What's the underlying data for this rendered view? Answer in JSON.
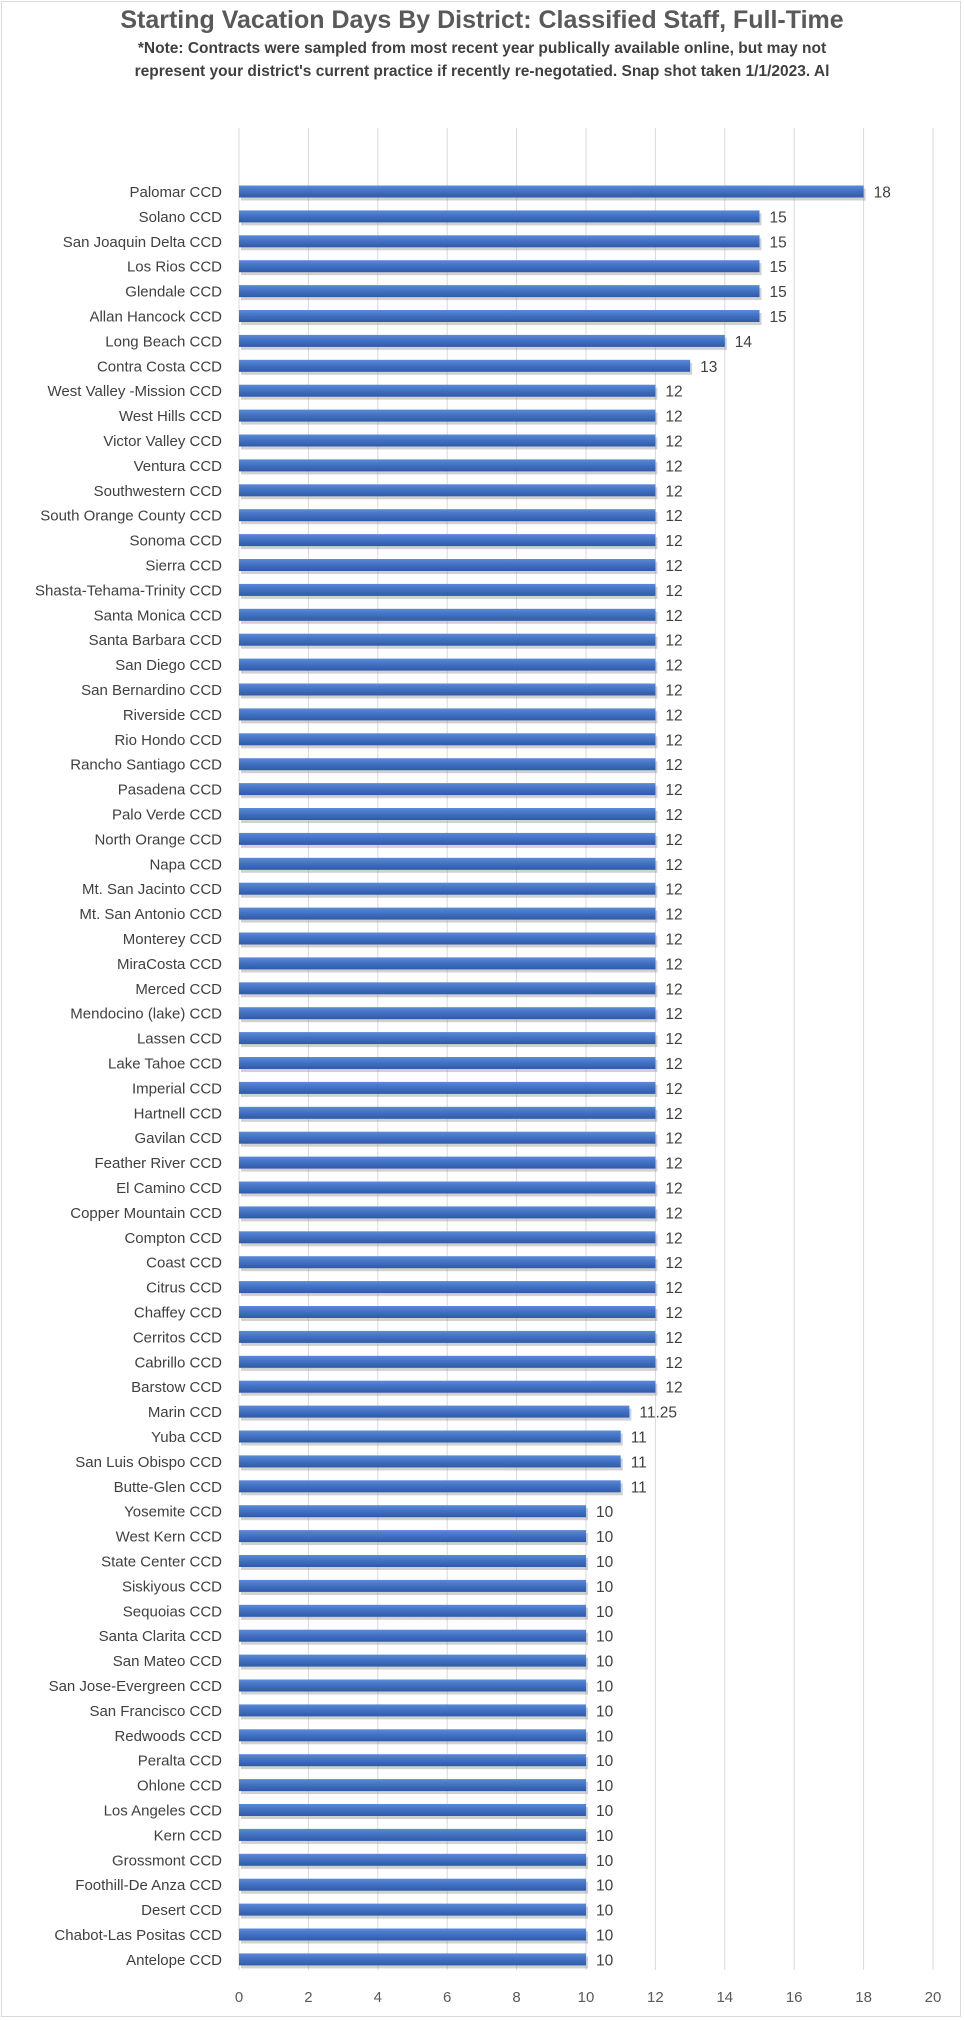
{
  "chart_data": {
    "type": "bar",
    "orientation": "horizontal",
    "title": "Starting Vacation Days By District: Classified Staff, Full-Time",
    "subtitle_lines": [
      "*Note: Contracts were sampled from most recent year publically available online, but may not",
      "represent your district's current practice if recently re-negotatied. Snap shot taken 1/1/2023. Al"
    ],
    "xlabel": "",
    "ylabel": "",
    "xlim": [
      0,
      20
    ],
    "x_ticks": [
      "0",
      "2",
      "4",
      "6",
      "8",
      "10",
      "12",
      "14",
      "16",
      "18",
      "20"
    ],
    "grid": "vertical",
    "legend": "none",
    "bar_color": "#4472c4",
    "categories": [
      "Palomar CCD",
      "Solano CCD",
      "San Joaquin Delta CCD",
      "Los Rios CCD",
      "Glendale CCD",
      "Allan Hancock CCD",
      "Long Beach CCD",
      "Contra Costa CCD",
      "West Valley -Mission CCD",
      "West Hills CCD",
      "Victor Valley CCD",
      "Ventura CCD",
      "Southwestern CCD",
      "South Orange County CCD",
      "Sonoma CCD",
      "Sierra CCD",
      "Shasta-Tehama-Trinity CCD",
      "Santa Monica CCD",
      "Santa Barbara CCD",
      "San Diego CCD",
      "San Bernardino CCD",
      "Riverside CCD",
      "Rio Hondo CCD",
      "Rancho Santiago CCD",
      "Pasadena CCD",
      "Palo Verde CCD",
      "North Orange CCD",
      "Napa CCD",
      "Mt. San Jacinto CCD",
      "Mt. San Antonio CCD",
      "Monterey CCD",
      "MiraCosta CCD",
      "Merced CCD",
      "Mendocino (lake) CCD",
      "Lassen CCD",
      "Lake Tahoe CCD",
      "Imperial CCD",
      "Hartnell CCD",
      "Gavilan CCD",
      "Feather River CCD",
      "El Camino CCD",
      "Copper Mountain CCD",
      "Compton CCD",
      "Coast CCD",
      "Citrus CCD",
      "Chaffey CCD",
      "Cerritos CCD",
      "Cabrillo CCD",
      "Barstow CCD",
      "Marin CCD",
      "Yuba CCD",
      "San Luis Obispo CCD",
      "Butte-Glen CCD",
      "Yosemite CCD",
      "West Kern CCD",
      "State Center CCD",
      "Siskiyous CCD",
      "Sequoias CCD",
      "Santa Clarita CCD",
      "San Mateo CCD",
      "San Jose-Evergreen CCD",
      "San Francisco CCD",
      "Redwoods CCD",
      "Peralta CCD",
      "Ohlone CCD",
      "Los Angeles CCD",
      "Kern CCD",
      "Grossmont CCD",
      "Foothill-De Anza CCD",
      "Desert CCD",
      "Chabot-Las Positas CCD",
      "Antelope CCD"
    ],
    "values": [
      18,
      15,
      15,
      15,
      15,
      15,
      14,
      13,
      12,
      12,
      12,
      12,
      12,
      12,
      12,
      12,
      12,
      12,
      12,
      12,
      12,
      12,
      12,
      12,
      12,
      12,
      12,
      12,
      12,
      12,
      12,
      12,
      12,
      12,
      12,
      12,
      12,
      12,
      12,
      12,
      12,
      12,
      12,
      12,
      12,
      12,
      12,
      12,
      12,
      11.25,
      11,
      11,
      11,
      10,
      10,
      10,
      10,
      10,
      10,
      10,
      10,
      10,
      10,
      10,
      10,
      10,
      10,
      10,
      10,
      10,
      10,
      10
    ],
    "data_labels": [
      "18",
      "15",
      "15",
      "15",
      "15",
      "15",
      "14",
      "13",
      "12",
      "12",
      "12",
      "12",
      "12",
      "12",
      "12",
      "12",
      "12",
      "12",
      "12",
      "12",
      "12",
      "12",
      "12",
      "12",
      "12",
      "12",
      "12",
      "12",
      "12",
      "12",
      "12",
      "12",
      "12",
      "12",
      "12",
      "12",
      "12",
      "12",
      "12",
      "12",
      "12",
      "12",
      "12",
      "12",
      "12",
      "12",
      "12",
      "12",
      "12",
      "11.25",
      "11",
      "11",
      "11",
      "10",
      "10",
      "10",
      "10",
      "10",
      "10",
      "10",
      "10",
      "10",
      "10",
      "10",
      "10",
      "10",
      "10",
      "10",
      "10",
      "10",
      "10",
      "10"
    ]
  }
}
